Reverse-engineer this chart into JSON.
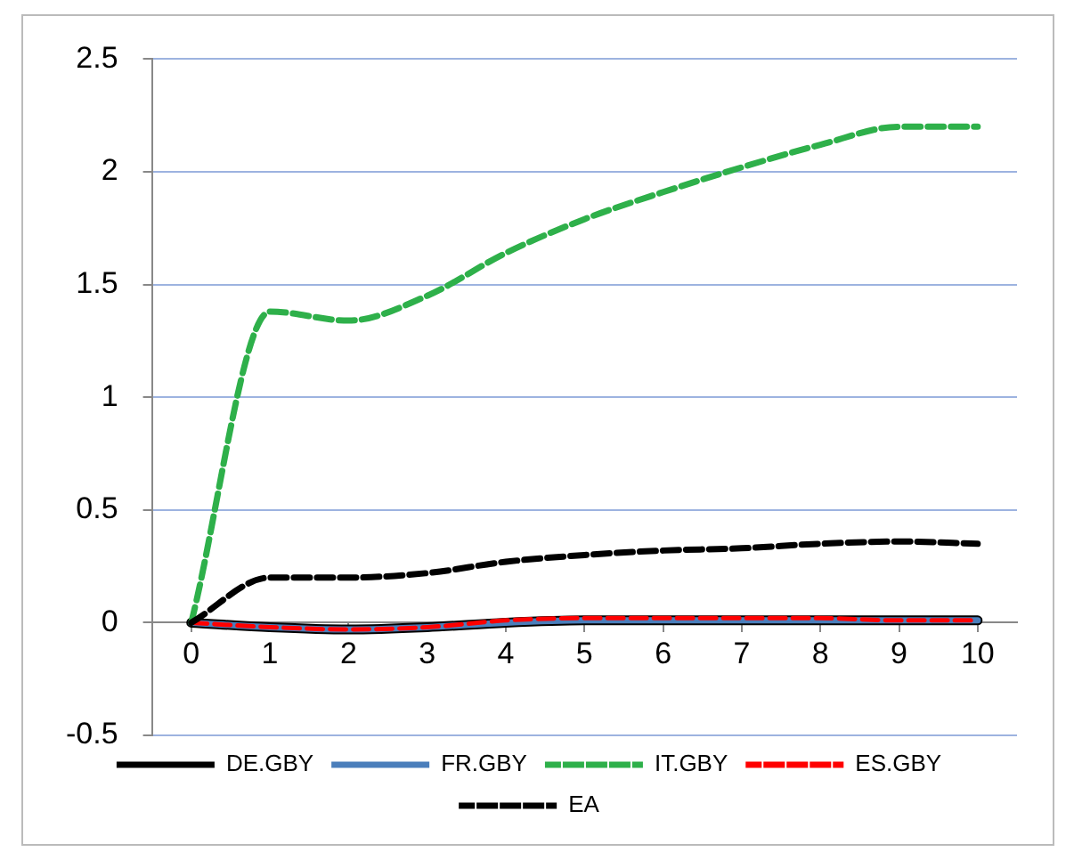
{
  "chart_data": {
    "type": "line",
    "x": [
      0,
      1,
      2,
      3,
      4,
      5,
      6,
      7,
      8,
      9,
      10
    ],
    "xlim": [
      -0.5,
      10.5
    ],
    "xticks": [
      0,
      1,
      2,
      3,
      4,
      5,
      6,
      7,
      8,
      9,
      10
    ],
    "ylim": [
      -0.5,
      2.5
    ],
    "yticks": [
      -0.5,
      0,
      0.5,
      1,
      1.5,
      2,
      2.5
    ],
    "grid": "y",
    "legend": "bottom",
    "marker": "none",
    "series": [
      {
        "name": "DE.GBY",
        "color": "#000000",
        "line_style": "solid",
        "values": [
          0,
          -0.02,
          -0.03,
          -0.02,
          0,
          0.01,
          0.01,
          0.01,
          0.01,
          0.01,
          0.01
        ]
      },
      {
        "name": "FR.GBY",
        "color": "#4a7ebb",
        "line_style": "solid",
        "values": [
          0,
          -0.02,
          -0.03,
          -0.02,
          0,
          0.01,
          0.01,
          0.01,
          0.01,
          0.01,
          0.01
        ]
      },
      {
        "name": "IT.GBY",
        "color": "#2eb04a",
        "line_style": "dashed",
        "values": [
          0,
          1.38,
          1.34,
          1.45,
          1.64,
          1.79,
          1.91,
          2.02,
          2.12,
          2.2,
          2.2
        ]
      },
      {
        "name": "ES.GBY",
        "color": "#ff0000",
        "line_style": "dashed",
        "values": [
          0,
          -0.02,
          -0.03,
          -0.02,
          0.01,
          0.02,
          0.02,
          0.02,
          0.02,
          0.01,
          0.01
        ]
      },
      {
        "name": "EA",
        "color": "#000000",
        "line_style": "dashed",
        "values": [
          0,
          0.2,
          0.2,
          0.22,
          0.27,
          0.3,
          0.32,
          0.33,
          0.35,
          0.36,
          0.35
        ]
      }
    ]
  }
}
